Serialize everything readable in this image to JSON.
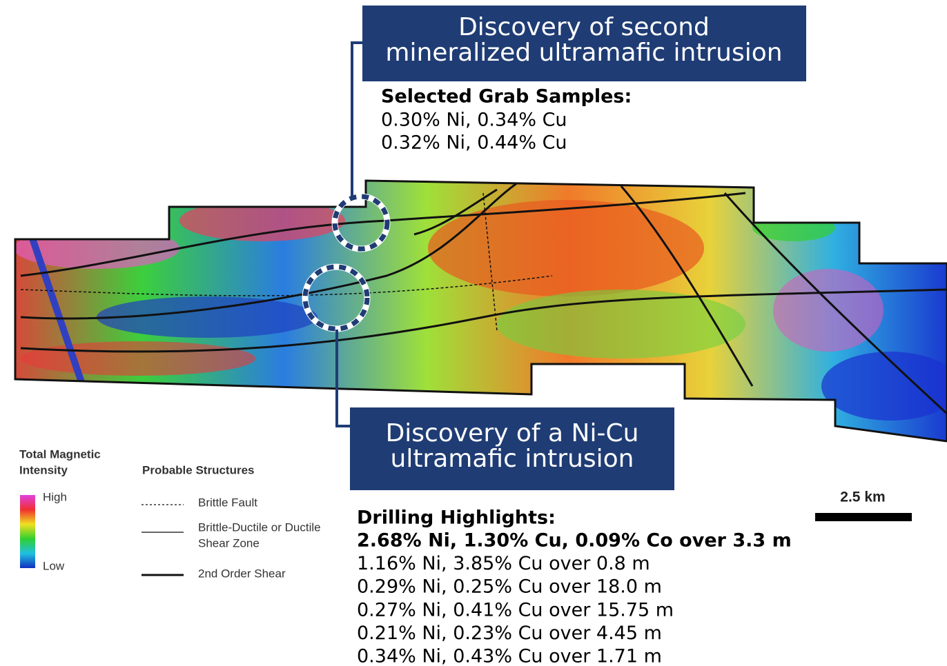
{
  "callouts": [
    {
      "title_lines": [
        "Discovery of second",
        "mineralized ultramafic intrusion"
      ]
    },
    {
      "title_lines": [
        "Discovery of a Ni-Cu",
        "ultramafic intrusion"
      ]
    }
  ],
  "grab_samples": {
    "heading": "Selected Grab Samples:",
    "items": [
      "0.30% Ni, 0.34% Cu",
      "0.32% Ni, 0.44% Cu"
    ]
  },
  "drilling": {
    "heading": "Drilling Highlights:",
    "items": [
      "2.68% Ni, 1.30% Cu, 0.09% Co over 3.3 m",
      "1.16% Ni, 3.85% Cu over 0.8 m",
      "0.29% Ni, 0.25% Cu over 18.0 m",
      "0.27% Ni, 0.41% Cu over 15.75 m",
      "0.21% Ni, 0.23% Cu over 4.45 m",
      "0.34% Ni, 0.43% Cu over 1.71 m"
    ]
  },
  "legend": {
    "intensity_title_lines": [
      "Total Magnetic",
      "Intensity"
    ],
    "high": "High",
    "low": "Low",
    "structures_title": "Probable Structures",
    "structures": [
      {
        "label_lines": [
          "Brittle Fault"
        ]
      },
      {
        "label_lines": [
          "Brittle-Ductile or Ductile",
          "Shear Zone"
        ]
      },
      {
        "label_lines": [
          "2nd Order Shear"
        ]
      }
    ]
  },
  "scale_label": "2.5 km"
}
